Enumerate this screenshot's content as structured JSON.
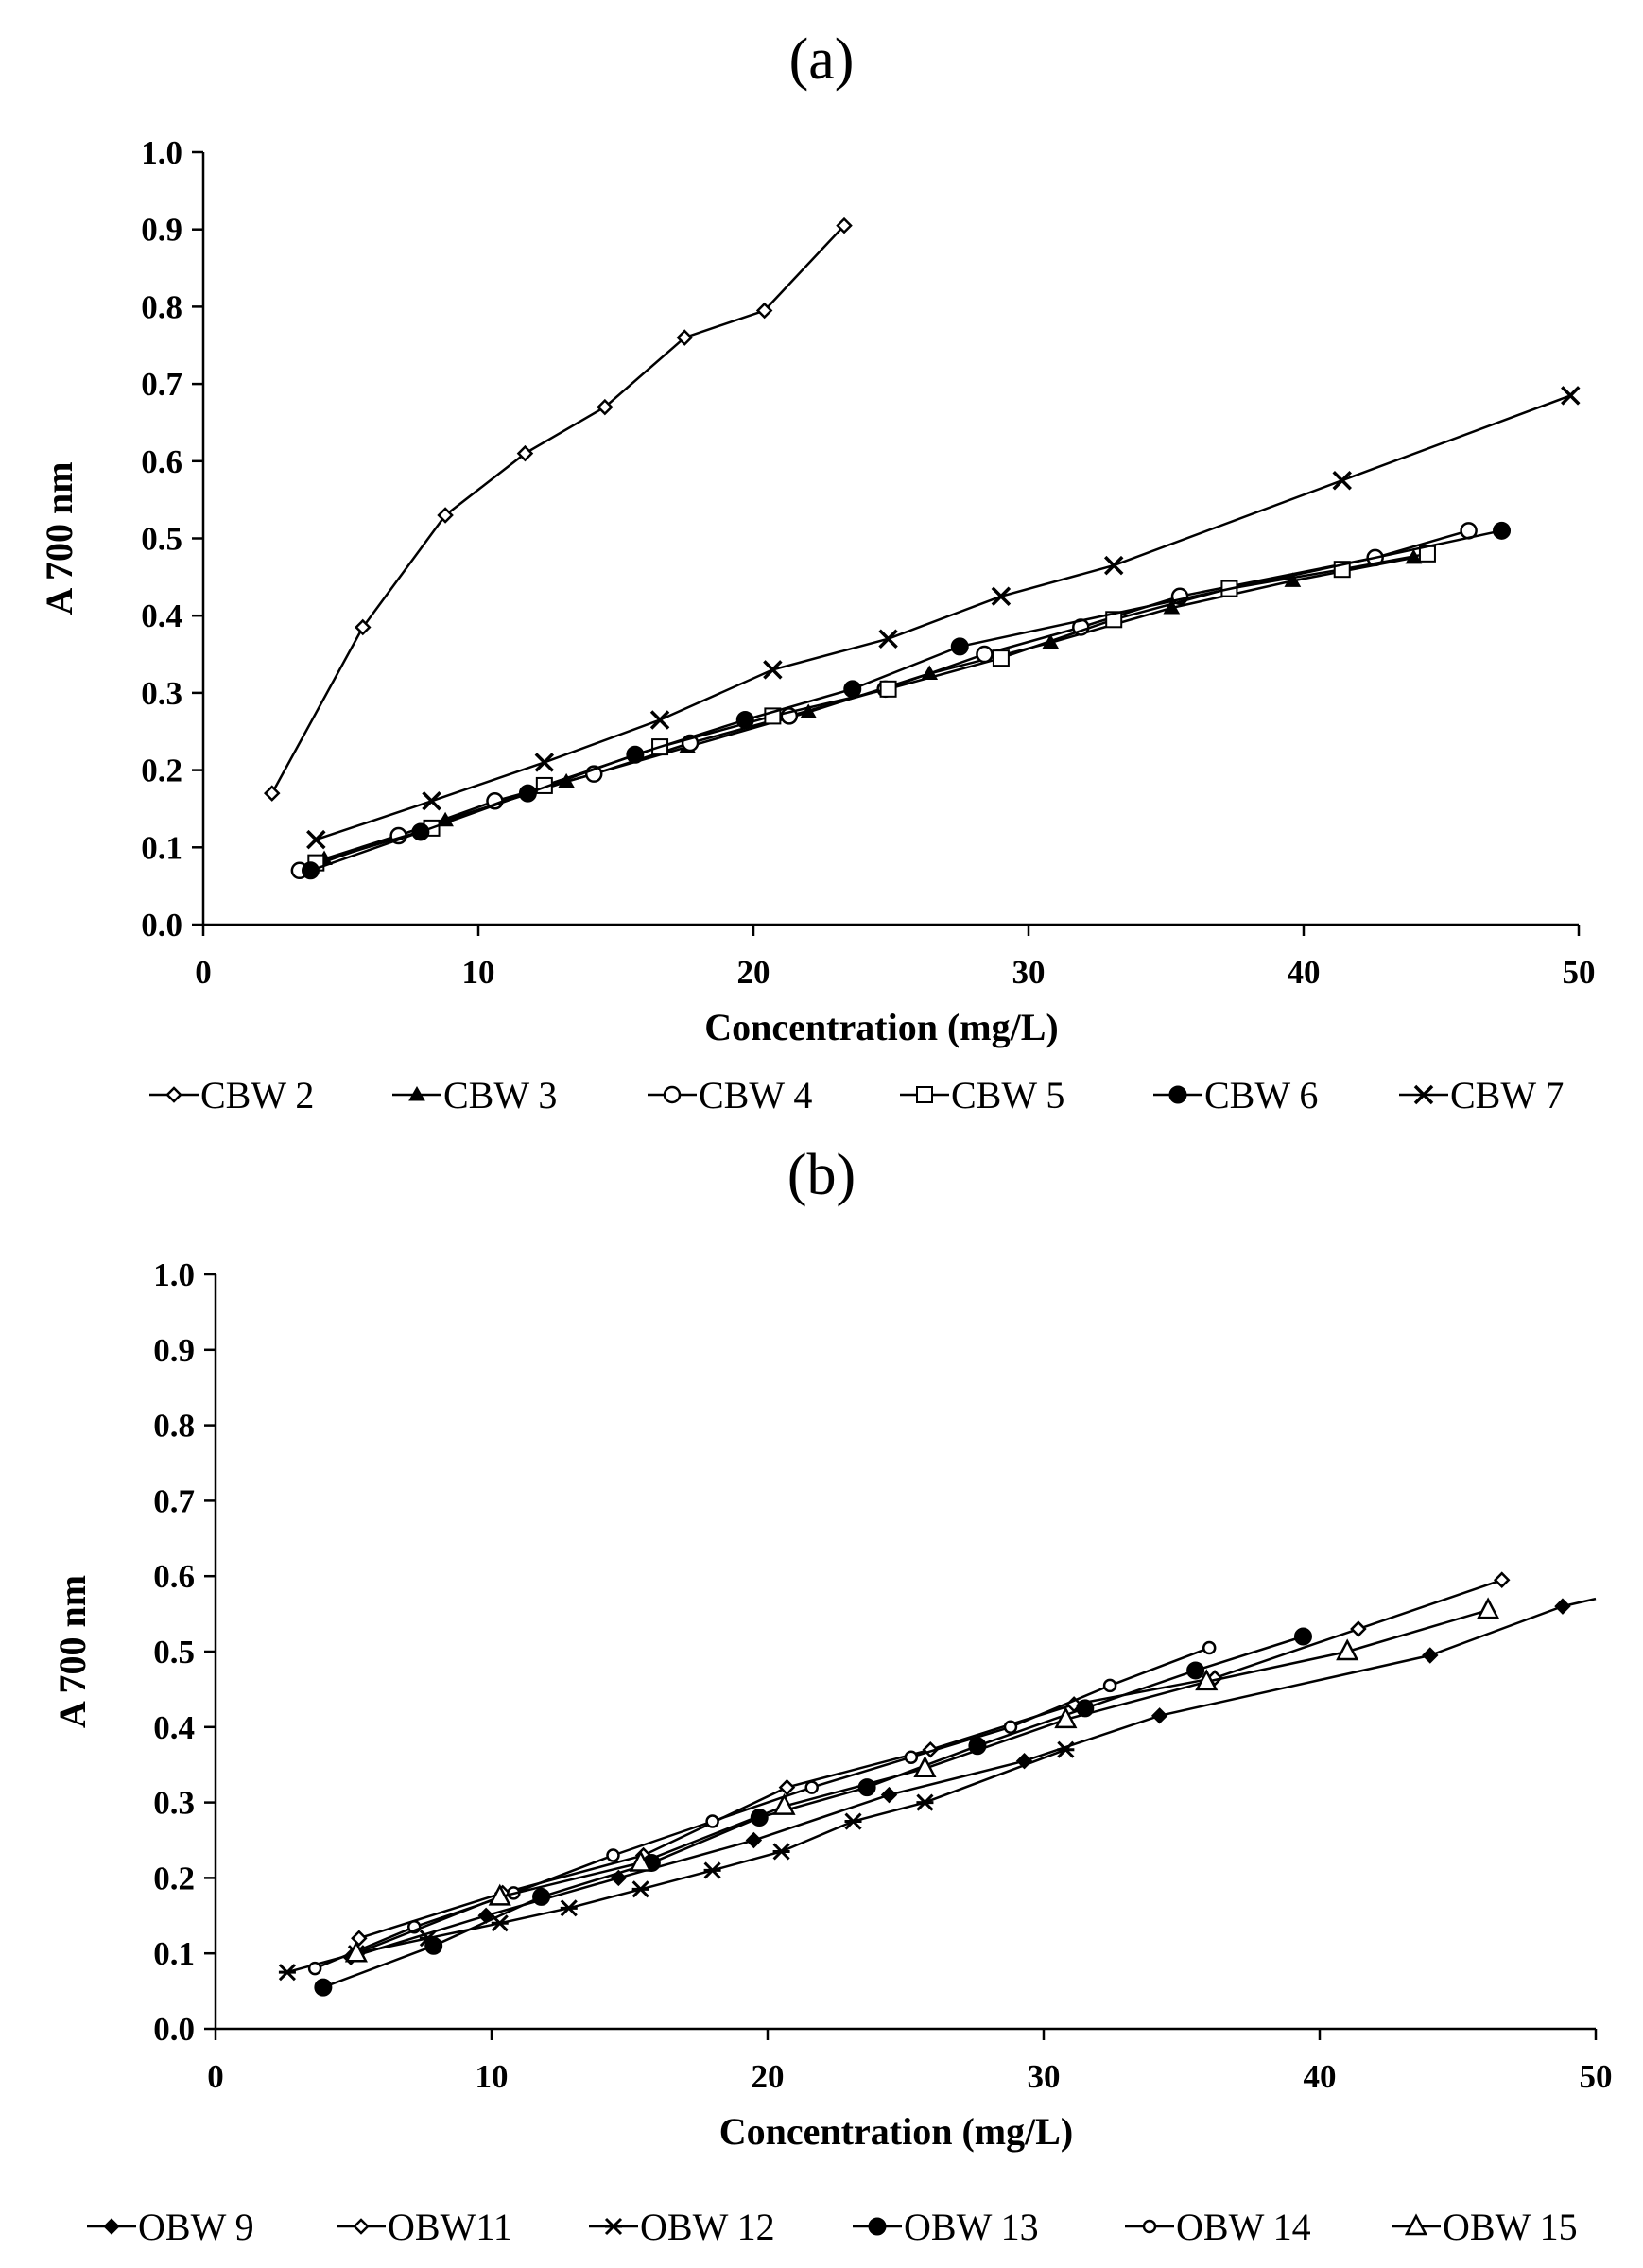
{
  "figure": {
    "panels": [
      {
        "label": "(a)"
      },
      {
        "label": "(b)"
      }
    ]
  },
  "chart_data": [
    {
      "type": "line",
      "panel": "(a)",
      "title": "(a)",
      "xlabel": "Concentration (mg/L)",
      "ylabel": "A 700 nm",
      "xlim": [
        0,
        50
      ],
      "ylim": [
        0,
        1.0
      ],
      "xticks": [
        0,
        10,
        20,
        30,
        40,
        50
      ],
      "yticks": [
        "0.0",
        "0.1",
        "0.2",
        "0.3",
        "0.4",
        "0.5",
        "0.6",
        "0.7",
        "0.8",
        "0.9",
        "1.0"
      ],
      "grid": false,
      "legend_position": "bottom",
      "series": [
        {
          "name": "CBW 2",
          "marker": "diamond-open",
          "x": [
            2.5,
            5.8,
            8.8,
            11.7,
            14.6,
            17.5,
            20.4,
            23.3
          ],
          "y": [
            0.17,
            0.385,
            0.53,
            0.61,
            0.67,
            0.76,
            0.795,
            0.905
          ]
        },
        {
          "name": "CBW 3",
          "marker": "triangle-filled",
          "x": [
            4.4,
            8.8,
            13.2,
            17.6,
            22.0,
            26.4,
            30.8,
            35.2,
            39.6,
            44.0
          ],
          "y": [
            0.085,
            0.135,
            0.185,
            0.23,
            0.275,
            0.325,
            0.365,
            0.41,
            0.445,
            0.475
          ]
        },
        {
          "name": "CBW 4",
          "marker": "circle-open",
          "x": [
            3.5,
            7.1,
            10.6,
            14.2,
            17.7,
            21.3,
            24.8,
            28.4,
            31.9,
            35.5,
            42.6,
            46.0
          ],
          "y": [
            0.07,
            0.115,
            0.16,
            0.195,
            0.235,
            0.27,
            0.305,
            0.35,
            0.385,
            0.425,
            0.475,
            0.51
          ]
        },
        {
          "name": "CBW 5",
          "marker": "square-open",
          "x": [
            4.1,
            8.3,
            12.4,
            16.6,
            20.7,
            24.9,
            29.0,
            33.1,
            37.3,
            41.4,
            44.5
          ],
          "y": [
            0.08,
            0.125,
            0.18,
            0.23,
            0.27,
            0.305,
            0.345,
            0.395,
            0.435,
            0.46,
            0.48
          ]
        },
        {
          "name": "CBW 6",
          "marker": "circle-filled",
          "x": [
            3.9,
            7.9,
            11.8,
            15.7,
            19.7,
            23.6,
            27.5,
            47.2
          ],
          "y": [
            0.07,
            0.12,
            0.17,
            0.22,
            0.265,
            0.305,
            0.36,
            0.51
          ]
        },
        {
          "name": "CBW 7",
          "marker": "x",
          "x": [
            4.1,
            8.3,
            12.4,
            16.6,
            20.7,
            24.9,
            29.0,
            33.1,
            41.4,
            49.7
          ],
          "y": [
            0.11,
            0.16,
            0.21,
            0.265,
            0.33,
            0.37,
            0.425,
            0.465,
            0.575,
            0.685
          ]
        }
      ]
    },
    {
      "type": "line",
      "panel": "(b)",
      "title": "(b)",
      "xlabel": "Concentration (mg/L)",
      "ylabel": "A 700 nm",
      "xlim": [
        0,
        50
      ],
      "ylim": [
        0,
        1.0
      ],
      "xticks": [
        0,
        10,
        20,
        30,
        40,
        50
      ],
      "yticks": [
        "0.0",
        "0.1",
        "0.2",
        "0.3",
        "0.4",
        "0.5",
        "0.6",
        "0.7",
        "0.8",
        "0.9",
        "1.0"
      ],
      "grid": false,
      "legend_position": "bottom",
      "series": [
        {
          "name": "OBW 9",
          "marker": "diamond-filled",
          "x": [
            4.9,
            9.8,
            14.6,
            19.5,
            24.4,
            29.3,
            34.2,
            44.0,
            48.8,
            50.0
          ],
          "y": [
            0.095,
            0.15,
            0.2,
            0.25,
            0.31,
            0.355,
            0.415,
            0.495,
            0.56,
            0.57
          ]
        },
        {
          "name": "OBW11",
          "marker": "diamond-open",
          "x": [
            5.2,
            10.4,
            15.5,
            20.7,
            25.9,
            31.1,
            36.2,
            41.4,
            46.6
          ],
          "y": [
            0.12,
            0.18,
            0.23,
            0.32,
            0.37,
            0.43,
            0.465,
            0.53,
            0.595
          ]
        },
        {
          "name": "OBW 12",
          "marker": "asterisk",
          "x": [
            2.6,
            5.1,
            7.7,
            10.3,
            12.8,
            15.4,
            18.0,
            20.5,
            23.1,
            25.7,
            30.8
          ],
          "y": [
            0.075,
            0.1,
            0.12,
            0.14,
            0.16,
            0.185,
            0.21,
            0.235,
            0.275,
            0.3,
            0.37
          ]
        },
        {
          "name": "OBW 13",
          "marker": "circle-filled",
          "x": [
            3.9,
            7.9,
            11.8,
            15.8,
            19.7,
            23.6,
            27.6,
            31.5,
            35.5,
            39.4
          ],
          "y": [
            0.055,
            0.11,
            0.175,
            0.22,
            0.28,
            0.32,
            0.375,
            0.425,
            0.475,
            0.52
          ]
        },
        {
          "name": "OBW 14",
          "marker": "circle-open-small",
          "x": [
            3.6,
            7.2,
            10.8,
            14.4,
            18.0,
            21.6,
            25.2,
            28.8,
            32.4,
            36.0
          ],
          "y": [
            0.08,
            0.135,
            0.18,
            0.23,
            0.275,
            0.32,
            0.36,
            0.4,
            0.455,
            0.505
          ]
        },
        {
          "name": "OBW 15",
          "marker": "triangle-open",
          "x": [
            5.1,
            10.3,
            15.4,
            20.6,
            25.7,
            30.8,
            35.9,
            41.0,
            46.1
          ],
          "y": [
            0.1,
            0.175,
            0.22,
            0.295,
            0.345,
            0.41,
            0.46,
            0.5,
            0.555
          ]
        }
      ]
    }
  ]
}
